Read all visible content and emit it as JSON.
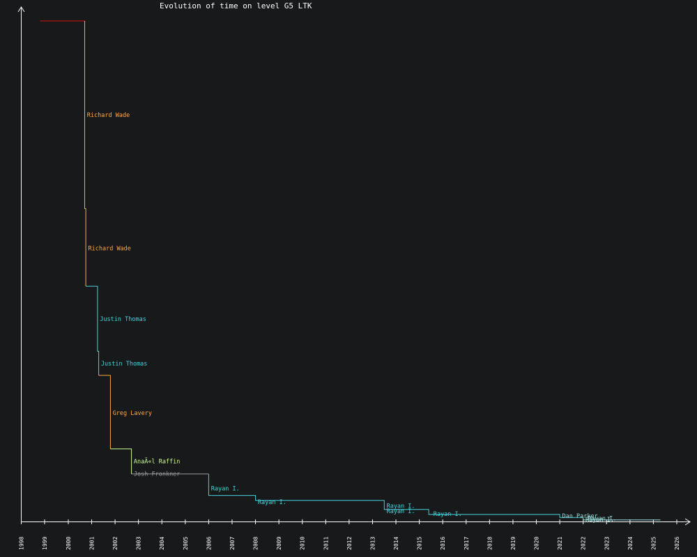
{
  "chart_data": {
    "type": "line",
    "title": "Evolution of time on level G5 LTK",
    "xlabel": "",
    "ylabel": "",
    "xlim": [
      1998,
      2026.6
    ],
    "ylim": [
      0,
      1.0
    ],
    "x_ticks": [
      "1998",
      "1999",
      "2000",
      "2001",
      "2002",
      "2003",
      "2004",
      "2005",
      "2006",
      "2007",
      "2008",
      "2009",
      "2010",
      "2011",
      "2012",
      "2013",
      "2014",
      "2015",
      "2016",
      "2017",
      "2018",
      "2019",
      "2020",
      "2021",
      "2022",
      "2023",
      "2024",
      "2025",
      "2026"
    ],
    "y_ticks": [],
    "grid": false,
    "colors": {
      "background": "#18191b",
      "axis": "#ffffff",
      "title": "#ffffff",
      "initial": "#dd1111",
      "orange": "#ffaa44",
      "cyan": "#44d4dd",
      "lime": "#ccff99",
      "gray": "#999999",
      "light_cyan": "#99dddd"
    },
    "series": [
      {
        "color": "initial",
        "points": [
          [
            1998.8,
            1.0
          ],
          [
            2000.7,
            1.0
          ]
        ]
      },
      {
        "color": "orange",
        "points": [
          [
            2000.7,
            1.0
          ],
          [
            2000.7,
            0.625
          ],
          [
            2000.75,
            0.625
          ],
          [
            2000.75,
            0.47
          ]
        ]
      },
      {
        "color": "cyan",
        "points": [
          [
            2000.75,
            0.47
          ],
          [
            2001.25,
            0.47
          ],
          [
            2001.25,
            0.34
          ],
          [
            2001.3,
            0.34
          ],
          [
            2001.3,
            0.292
          ]
        ]
      },
      {
        "color": "orange",
        "points": [
          [
            2001.3,
            0.292
          ],
          [
            2001.8,
            0.292
          ],
          [
            2001.8,
            0.145
          ]
        ]
      },
      {
        "color": "lime",
        "points": [
          [
            2001.8,
            0.145
          ],
          [
            2002.7,
            0.145
          ],
          [
            2002.7,
            0.095
          ]
        ]
      },
      {
        "color": "gray",
        "points": [
          [
            2002.7,
            0.095
          ],
          [
            2006.0,
            0.095
          ]
        ]
      },
      {
        "color": "cyan",
        "points": [
          [
            2006.0,
            0.095
          ],
          [
            2006.0,
            0.052
          ],
          [
            2008.0,
            0.052
          ],
          [
            2008.0,
            0.042
          ],
          [
            2013.5,
            0.042
          ],
          [
            2013.5,
            0.024
          ],
          [
            2015.4,
            0.024
          ],
          [
            2015.4,
            0.014
          ],
          [
            2021.0,
            0.014
          ],
          [
            2021.0,
            0.008
          ],
          [
            2022.0,
            0.008
          ]
        ]
      },
      {
        "color": "light_cyan",
        "points": [
          [
            2022.0,
            0.008
          ],
          [
            2022.0,
            0.003
          ],
          [
            2025.3,
            0.003
          ]
        ]
      }
    ],
    "annotations": [
      {
        "text": "Richard Wade",
        "x": 2000.8,
        "y": 0.812,
        "color": "orange"
      },
      {
        "text": "Richard Wade",
        "x": 2000.85,
        "y": 0.546,
        "color": "orange"
      },
      {
        "text": "Justin Thomas",
        "x": 2001.35,
        "y": 0.405,
        "color": "cyan"
      },
      {
        "text": "Justin Thomas",
        "x": 2001.4,
        "y": 0.316,
        "color": "cyan"
      },
      {
        "text": "Greg Lavery",
        "x": 2001.9,
        "y": 0.217,
        "color": "orange"
      },
      {
        "text": "AnaÃ«l Raffin",
        "x": 2002.8,
        "y": 0.12,
        "color": "lime"
      },
      {
        "text": "Josh Fronkner",
        "x": 2002.8,
        "y": 0.095,
        "color": "gray"
      },
      {
        "text": "Rayan I.",
        "x": 2006.1,
        "y": 0.066,
        "color": "cyan"
      },
      {
        "text": "Rayan I.",
        "x": 2008.1,
        "y": 0.039,
        "color": "cyan"
      },
      {
        "text": "Rayan I.",
        "x": 2013.6,
        "y": 0.031,
        "color": "cyan"
      },
      {
        "text": "Rayan I.",
        "x": 2013.6,
        "y": 0.021,
        "color": "cyan"
      },
      {
        "text": "Rayan I.",
        "x": 2015.6,
        "y": 0.015,
        "color": "cyan"
      },
      {
        "text": "Dan Parker",
        "x": 2021.1,
        "y": 0.011,
        "color": "light_cyan"
      },
      {
        "text": "Rayan I.",
        "x": 2022.2,
        "y": 0.006,
        "color": "light_cyan"
      },
      {
        "text": "Rayan I.",
        "x": 2022.1,
        "y": 0.004,
        "color": "light_cyan"
      }
    ]
  }
}
